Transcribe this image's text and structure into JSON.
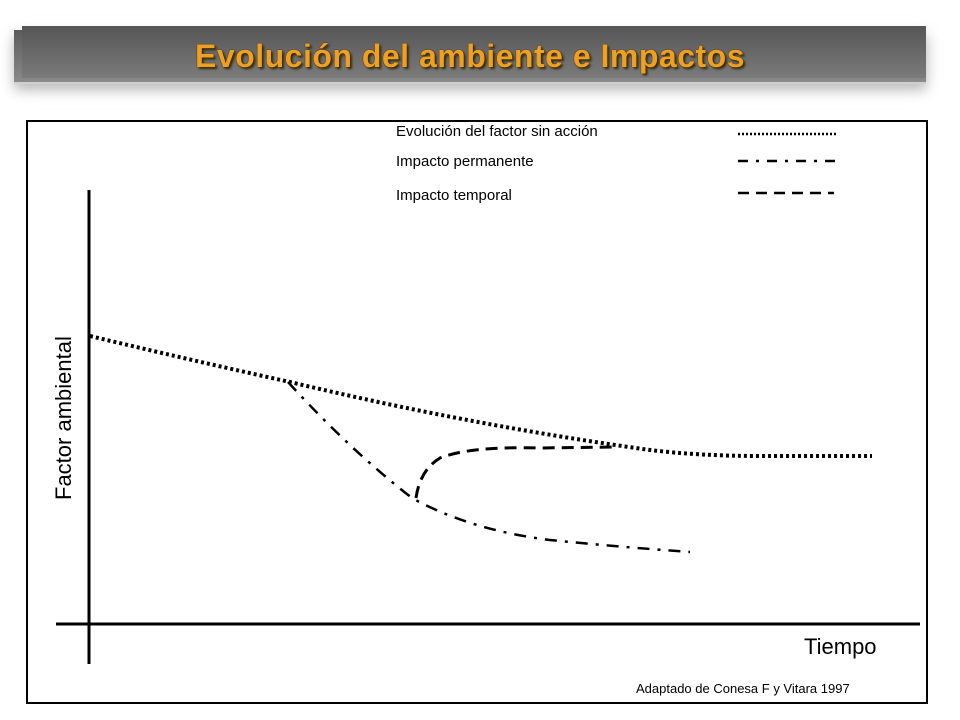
{
  "title": "Evolución del ambiente e Impactos",
  "legend": [
    {
      "label": "Evolución del factor sin acción",
      "style": "dotted"
    },
    {
      "label": "Impacto permanente",
      "style": "dash-dot"
    },
    {
      "label": "Impacto temporal",
      "style": "dashed"
    }
  ],
  "axes": {
    "y_label": "Factor  ambiental",
    "x_label": "Tiempo"
  },
  "credit": "Adaptado de Conesa F y Vitara 1997",
  "colors": {
    "title_text": "#f0a020",
    "title_bar": "#6a6a6a",
    "lines": "#000000"
  }
}
